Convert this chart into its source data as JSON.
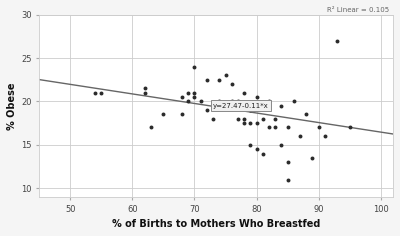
{
  "scatter_x": [
    54,
    55,
    62,
    62,
    63,
    65,
    68,
    68,
    69,
    69,
    70,
    70,
    70,
    71,
    72,
    72,
    73,
    74,
    74,
    75,
    75,
    76,
    76,
    77,
    77,
    78,
    78,
    78,
    79,
    79,
    79,
    80,
    80,
    80,
    81,
    81,
    82,
    82,
    83,
    83,
    84,
    84,
    85,
    85,
    85,
    86,
    87,
    88,
    89,
    90,
    91,
    93,
    95
  ],
  "scatter_y": [
    21,
    21,
    21,
    21.5,
    17,
    18.5,
    20.5,
    18.5,
    20,
    21,
    20.5,
    21,
    24,
    20,
    22.5,
    19,
    18,
    20,
    22.5,
    19.5,
    23,
    20,
    22,
    18,
    20,
    17.5,
    18,
    21,
    17.5,
    15,
    19,
    20.5,
    17.5,
    14.5,
    14,
    18,
    20,
    17,
    18,
    17,
    19.5,
    15,
    17,
    13,
    11,
    20,
    16,
    18.5,
    13.5,
    17,
    16,
    27,
    17
  ],
  "line_x": [
    45,
    102
  ],
  "line_y_intercept": 27.47,
  "line_slope": -0.11,
  "equation": "y=27.47-0.11*x",
  "r2_label": "R² Linear = 0.105",
  "xlabel": "% of Births to Mothers Who Breastfed",
  "ylabel": "% Obese",
  "xlim": [
    45,
    102
  ],
  "ylim": [
    9,
    30
  ],
  "xticks": [
    50,
    60,
    70,
    80,
    90,
    100
  ],
  "yticks": [
    10,
    15,
    20,
    25,
    30
  ],
  "background_color": "#f5f5f5",
  "plot_bg": "#ffffff",
  "grid_color": "#cccccc",
  "dot_color": "#2b2b2b",
  "line_color": "#666666",
  "annotation_box_facecolor": "#f0f0f0",
  "annotation_box_edgecolor": "#888888",
  "annotation_text_color": "#222222",
  "r2_text_color": "#666666",
  "tick_label_color": "#444444",
  "axis_label_color": "#111111"
}
